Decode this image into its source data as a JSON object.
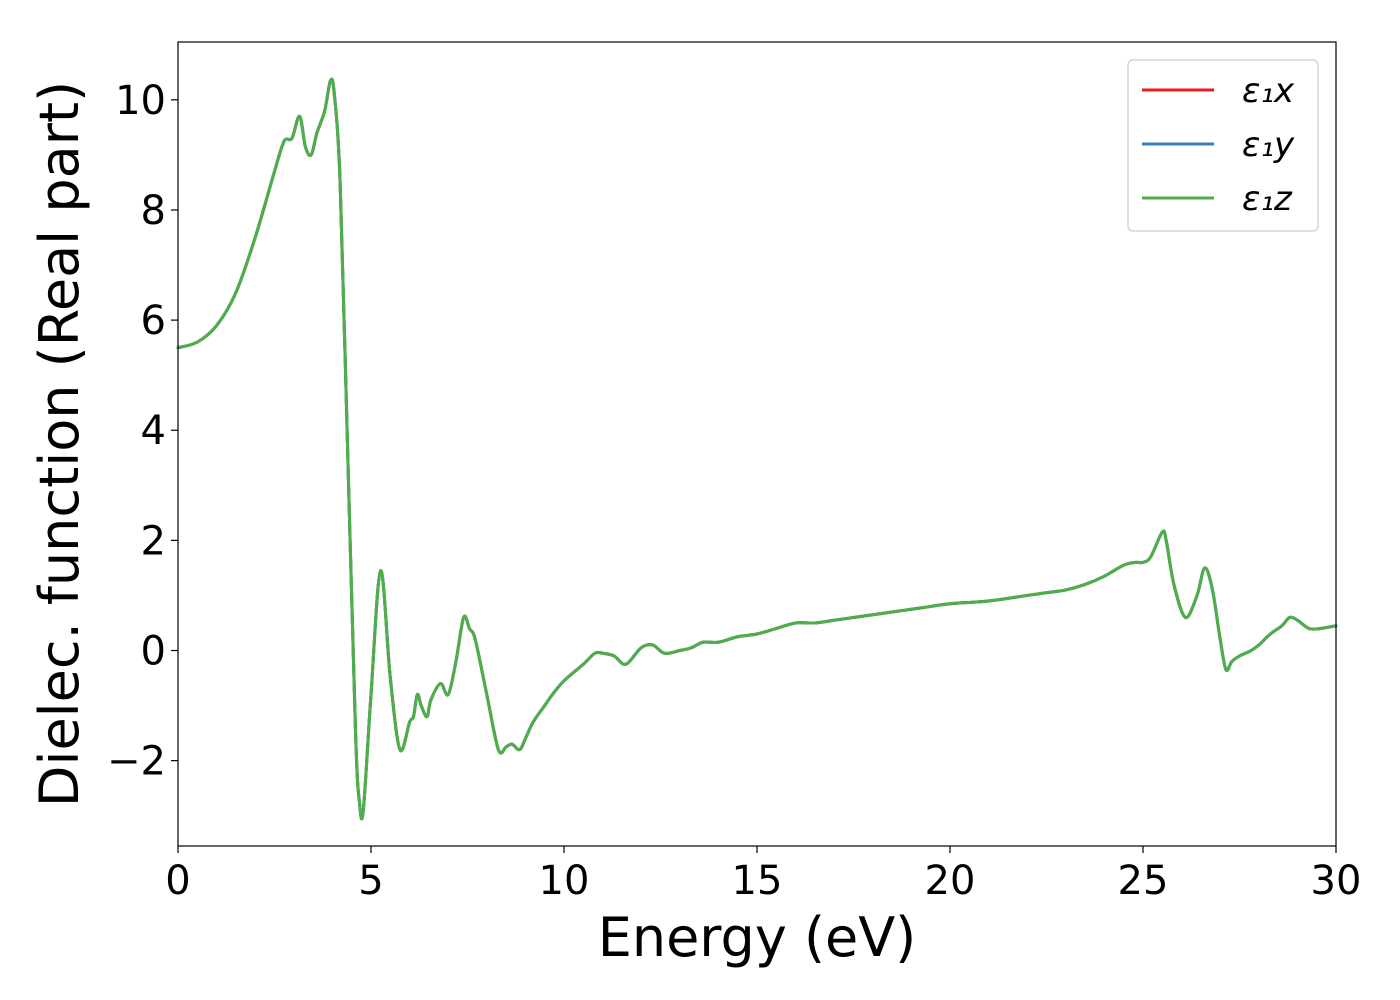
{
  "chart_data": {
    "type": "line",
    "title": "",
    "xlabel": "Energy (eV)",
    "ylabel": "Dielec. function (Real part)",
    "xlim": [
      0,
      30
    ],
    "ylim": [
      -3.55,
      11.05
    ],
    "xticks": [
      0,
      5,
      10,
      15,
      20,
      25,
      30
    ],
    "xtick_labels": [
      "0",
      "5",
      "10",
      "15",
      "20",
      "25",
      "30"
    ],
    "yticks": [
      -2,
      0,
      2,
      4,
      6,
      8,
      10
    ],
    "ytick_labels": [
      "−2",
      "0",
      "2",
      "4",
      "6",
      "8",
      "10"
    ],
    "grid": false,
    "legend_position": "top-right",
    "series": [
      {
        "name": "ε₁x",
        "color": "#e41a1c",
        "x": [
          0,
          0.5,
          1.0,
          1.5,
          2.0,
          2.5,
          2.75,
          2.95,
          3.15,
          3.3,
          3.45,
          3.6,
          3.8,
          3.95,
          4.05,
          4.2,
          4.4,
          4.6,
          4.7,
          4.8,
          5.0,
          5.25,
          5.5,
          5.75,
          6.0,
          6.1,
          6.2,
          6.3,
          6.45,
          6.55,
          6.8,
          7.0,
          7.2,
          7.4,
          7.55,
          7.7,
          8.0,
          8.3,
          8.5,
          8.65,
          8.85,
          9.0,
          9.2,
          9.5,
          9.7,
          10.0,
          10.5,
          10.8,
          11.0,
          11.3,
          11.6,
          12.0,
          12.3,
          12.6,
          13.0,
          13.3,
          13.6,
          14.0,
          14.5,
          15.0,
          15.5,
          16.0,
          16.5,
          17.0,
          17.5,
          18.0,
          18.5,
          19.0,
          19.5,
          20.0,
          21.0,
          22.0,
          22.5,
          23.0,
          23.5,
          24.0,
          24.5,
          24.8,
          25.0,
          25.2,
          25.5,
          25.6,
          25.8,
          26.1,
          26.4,
          26.6,
          26.8,
          27.0,
          27.15,
          27.3,
          27.5,
          27.8,
          28.0,
          28.3,
          28.6,
          28.8,
          29.0,
          29.3,
          29.6,
          30.0
        ],
        "values": [
          5.5,
          5.6,
          5.9,
          6.5,
          7.5,
          8.7,
          9.25,
          9.3,
          9.7,
          9.15,
          9.0,
          9.4,
          9.8,
          10.35,
          10.1,
          8.5,
          3.5,
          -1.5,
          -2.75,
          -2.9,
          -0.8,
          1.45,
          -0.5,
          -1.8,
          -1.3,
          -1.2,
          -0.8,
          -1.0,
          -1.2,
          -0.9,
          -0.6,
          -0.8,
          -0.2,
          0.6,
          0.4,
          0.2,
          -0.8,
          -1.8,
          -1.75,
          -1.7,
          -1.8,
          -1.6,
          -1.3,
          -1.0,
          -0.8,
          -0.55,
          -0.25,
          -0.05,
          -0.05,
          -0.1,
          -0.25,
          0.05,
          0.1,
          -0.05,
          0.0,
          0.05,
          0.15,
          0.15,
          0.25,
          0.3,
          0.4,
          0.5,
          0.5,
          0.55,
          0.6,
          0.65,
          0.7,
          0.75,
          0.8,
          0.85,
          0.9,
          1.0,
          1.05,
          1.1,
          1.2,
          1.35,
          1.55,
          1.6,
          1.6,
          1.7,
          2.15,
          2.0,
          1.2,
          0.6,
          1.0,
          1.5,
          1.1,
          0.2,
          -0.35,
          -0.2,
          -0.1,
          0.0,
          0.1,
          0.3,
          0.45,
          0.6,
          0.55,
          0.4,
          0.4,
          0.45
        ]
      },
      {
        "name": "ε₁y",
        "color": "#377eb8",
        "x": [
          0,
          0.5,
          1.0,
          1.5,
          2.0,
          2.5,
          2.75,
          2.95,
          3.15,
          3.3,
          3.45,
          3.6,
          3.8,
          3.95,
          4.05,
          4.2,
          4.4,
          4.6,
          4.7,
          4.8,
          5.0,
          5.25,
          5.5,
          5.75,
          6.0,
          6.1,
          6.2,
          6.3,
          6.45,
          6.55,
          6.8,
          7.0,
          7.2,
          7.4,
          7.55,
          7.7,
          8.0,
          8.3,
          8.5,
          8.65,
          8.85,
          9.0,
          9.2,
          9.5,
          9.7,
          10.0,
          10.5,
          10.8,
          11.0,
          11.3,
          11.6,
          12.0,
          12.3,
          12.6,
          13.0,
          13.3,
          13.6,
          14.0,
          14.5,
          15.0,
          15.5,
          16.0,
          16.5,
          17.0,
          17.5,
          18.0,
          18.5,
          19.0,
          19.5,
          20.0,
          21.0,
          22.0,
          22.5,
          23.0,
          23.5,
          24.0,
          24.5,
          24.8,
          25.0,
          25.2,
          25.5,
          25.6,
          25.8,
          26.1,
          26.4,
          26.6,
          26.8,
          27.0,
          27.15,
          27.3,
          27.5,
          27.8,
          28.0,
          28.3,
          28.6,
          28.8,
          29.0,
          29.3,
          29.6,
          30.0
        ],
        "values": [
          5.5,
          5.6,
          5.9,
          6.5,
          7.5,
          8.7,
          9.25,
          9.3,
          9.7,
          9.15,
          9.0,
          9.4,
          9.8,
          10.35,
          10.1,
          8.5,
          3.5,
          -1.5,
          -2.75,
          -2.9,
          -0.8,
          1.45,
          -0.5,
          -1.8,
          -1.3,
          -1.2,
          -0.8,
          -1.0,
          -1.2,
          -0.9,
          -0.6,
          -0.8,
          -0.2,
          0.6,
          0.4,
          0.2,
          -0.8,
          -1.8,
          -1.75,
          -1.7,
          -1.8,
          -1.6,
          -1.3,
          -1.0,
          -0.8,
          -0.55,
          -0.25,
          -0.05,
          -0.05,
          -0.1,
          -0.25,
          0.05,
          0.1,
          -0.05,
          0.0,
          0.05,
          0.15,
          0.15,
          0.25,
          0.3,
          0.4,
          0.5,
          0.5,
          0.55,
          0.6,
          0.65,
          0.7,
          0.75,
          0.8,
          0.85,
          0.9,
          1.0,
          1.05,
          1.1,
          1.2,
          1.35,
          1.55,
          1.6,
          1.6,
          1.7,
          2.15,
          2.0,
          1.2,
          0.6,
          1.0,
          1.5,
          1.1,
          0.2,
          -0.35,
          -0.2,
          -0.1,
          0.0,
          0.1,
          0.3,
          0.45,
          0.6,
          0.55,
          0.4,
          0.4,
          0.45
        ]
      },
      {
        "name": "ε₁z",
        "color": "#4daf4a",
        "x": [
          0,
          0.5,
          1.0,
          1.5,
          2.0,
          2.5,
          2.75,
          2.95,
          3.15,
          3.3,
          3.45,
          3.6,
          3.8,
          3.95,
          4.05,
          4.2,
          4.4,
          4.6,
          4.7,
          4.8,
          5.0,
          5.25,
          5.5,
          5.75,
          6.0,
          6.1,
          6.2,
          6.3,
          6.45,
          6.55,
          6.8,
          7.0,
          7.2,
          7.4,
          7.55,
          7.7,
          8.0,
          8.3,
          8.5,
          8.65,
          8.85,
          9.0,
          9.2,
          9.5,
          9.7,
          10.0,
          10.5,
          10.8,
          11.0,
          11.3,
          11.6,
          12.0,
          12.3,
          12.6,
          13.0,
          13.3,
          13.6,
          14.0,
          14.5,
          15.0,
          15.5,
          16.0,
          16.5,
          17.0,
          17.5,
          18.0,
          18.5,
          19.0,
          19.5,
          20.0,
          21.0,
          22.0,
          22.5,
          23.0,
          23.5,
          24.0,
          24.5,
          24.8,
          25.0,
          25.2,
          25.5,
          25.6,
          25.8,
          26.1,
          26.4,
          26.6,
          26.8,
          27.0,
          27.15,
          27.3,
          27.5,
          27.8,
          28.0,
          28.3,
          28.6,
          28.8,
          29.0,
          29.3,
          29.6,
          30.0
        ],
        "values": [
          5.5,
          5.6,
          5.9,
          6.5,
          7.5,
          8.7,
          9.25,
          9.3,
          9.7,
          9.15,
          9.0,
          9.4,
          9.8,
          10.35,
          10.1,
          8.5,
          3.5,
          -1.5,
          -2.75,
          -2.9,
          -0.8,
          1.45,
          -0.5,
          -1.8,
          -1.3,
          -1.2,
          -0.8,
          -1.0,
          -1.2,
          -0.9,
          -0.6,
          -0.8,
          -0.2,
          0.6,
          0.4,
          0.2,
          -0.8,
          -1.8,
          -1.75,
          -1.7,
          -1.8,
          -1.6,
          -1.3,
          -1.0,
          -0.8,
          -0.55,
          -0.25,
          -0.05,
          -0.05,
          -0.1,
          -0.25,
          0.05,
          0.1,
          -0.05,
          0.0,
          0.05,
          0.15,
          0.15,
          0.25,
          0.3,
          0.4,
          0.5,
          0.5,
          0.55,
          0.6,
          0.65,
          0.7,
          0.75,
          0.8,
          0.85,
          0.9,
          1.0,
          1.05,
          1.1,
          1.2,
          1.35,
          1.55,
          1.6,
          1.6,
          1.7,
          2.15,
          2.0,
          1.2,
          0.6,
          1.0,
          1.5,
          1.1,
          0.2,
          -0.35,
          -0.2,
          -0.1,
          0.0,
          0.1,
          0.3,
          0.45,
          0.6,
          0.55,
          0.4,
          0.4,
          0.45
        ]
      }
    ]
  }
}
